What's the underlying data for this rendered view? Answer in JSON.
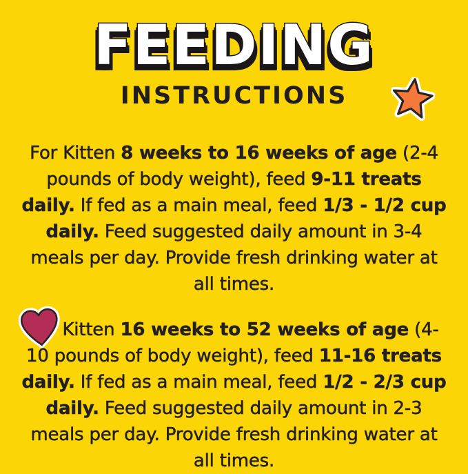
{
  "title": {
    "line1": "FEEDING",
    "line2": "INSTRUCTIONS"
  },
  "paragraphs": [
    {
      "id": "kitten-8-16-weeks",
      "segments": [
        {
          "text": "For Kitten ",
          "bold": false
        },
        {
          "text": "8 weeks to 16 weeks of age",
          "bold": true
        },
        {
          "text": " (2-4 pounds of body weight), feed ",
          "bold": false
        },
        {
          "text": "9-11 treats daily.",
          "bold": true
        },
        {
          "text": " If fed as a main meal, feed ",
          "bold": false
        },
        {
          "text": "1/3 - 1/2 cup daily.",
          "bold": true
        },
        {
          "text": " Feed suggested daily amount in 3-4 meals per day. Provide fresh drinking water at all times.",
          "bold": false
        }
      ]
    },
    {
      "id": "kitten-16-52-weeks",
      "segments": [
        {
          "text": "For Kitten ",
          "bold": false
        },
        {
          "text": "16 weeks to 52 weeks of age",
          "bold": true
        },
        {
          "text": " (4-10 pounds of body weight), feed ",
          "bold": false
        },
        {
          "text": "11-16 treats daily.",
          "bold": true
        },
        {
          "text": " If fed as a main meal, feed ",
          "bold": false
        },
        {
          "text": "1/2 - 2/3 cup daily.",
          "bold": true
        },
        {
          "text": " Feed suggested daily amount in 2-3 meals per day. Provide fresh drinking water at all times.",
          "bold": false
        }
      ]
    }
  ],
  "icons": [
    {
      "name": "star-icon",
      "shape": "five-point-star"
    },
    {
      "name": "heart-icon",
      "shape": "heart"
    }
  ],
  "colors": {
    "background": "#FBD505",
    "text": "#242021",
    "title_fill": "#FFFFFF",
    "title_outline": "#1B1718",
    "star_fill": "#F5793B",
    "heart_fill": "#B42D56",
    "sticker_outline": "#2B2322",
    "sticker_halo": "#FFFFFF"
  }
}
